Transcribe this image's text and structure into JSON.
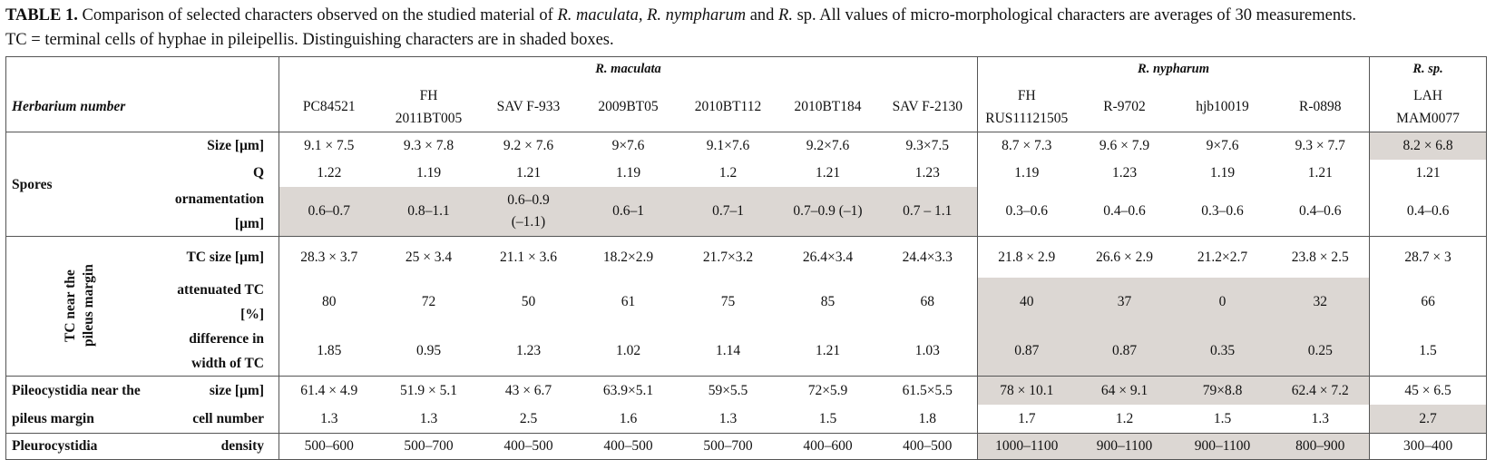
{
  "caption": {
    "label": "TABLE 1.",
    "parts": [
      "Comparison of selected characters observed on the studied material of ",
      "R. maculata, R. nympharum",
      " and ",
      "R.",
      " sp. All values of micro-morphological characters are averages of 30 measurements.",
      "TC = terminal cells of hyphae in pileipellis. Distinguishing characters are in shaded boxes."
    ]
  },
  "table": {
    "groups": [
      "R. maculata",
      "R. nypharum",
      "R. sp."
    ],
    "herbarium_label": "Herbarium number",
    "herbarium_numbers": [
      [
        "PC84521"
      ],
      [
        "FH",
        "2011BT005"
      ],
      [
        "SAV F-933"
      ],
      [
        "2009BT05"
      ],
      [
        "2010BT112"
      ],
      [
        "2010BT184"
      ],
      [
        "SAV F-2130"
      ],
      [
        "FH",
        "RUS11121505"
      ],
      [
        "R-9702"
      ],
      [
        "hjb10019"
      ],
      [
        "R-0898"
      ],
      [
        "LAH",
        "MAM0077"
      ]
    ],
    "shade_color": "#dcd7d3",
    "sections": [
      {
        "label": "Spores",
        "label_orientation": "horizontal",
        "rows": [
          {
            "label": "Size [µm]",
            "values": [
              "9.1 × 7.5",
              "9.3 × 7.8",
              "9.2 × 7.6",
              "9×7.6",
              "9.1×7.6",
              "9.2×7.6",
              "9.3×7.5",
              "8.7 × 7.3",
              "9.6 × 7.9",
              "9×7.6",
              "9.3 × 7.7",
              "8.2 × 6.8"
            ],
            "shaded": [
              false,
              false,
              false,
              false,
              false,
              false,
              false,
              false,
              false,
              false,
              false,
              true
            ]
          },
          {
            "label": "Q",
            "values": [
              "1.22",
              "1.19",
              "1.21",
              "1.19",
              "1.2",
              "1.21",
              "1.23",
              "1.19",
              "1.23",
              "1.19",
              "1.21",
              "1.21"
            ],
            "shaded": [
              false,
              false,
              false,
              false,
              false,
              false,
              false,
              false,
              false,
              false,
              false,
              false
            ]
          },
          {
            "label": "ornamentation [µm]",
            "values": [
              "0.6–0.7",
              "0.8–1.1",
              [
                "0.6–0.9",
                "(–1.1)"
              ],
              "0.6–1",
              "0.7–1",
              "0.7–0.9 (–1)",
              "0.7 – 1.1",
              "0.3–0.6",
              "0.4–0.6",
              "0.3–0.6",
              "0.4–0.6",
              "0.4–0.6"
            ],
            "shaded": [
              true,
              true,
              true,
              true,
              true,
              true,
              true,
              false,
              false,
              false,
              false,
              false
            ]
          }
        ]
      },
      {
        "label": "TC near the pileus margin",
        "label_orientation": "vertical",
        "rows": [
          {
            "label": "TC size [µm]",
            "values": [
              "28.3 × 3.7",
              "25 × 3.4",
              "21.1 × 3.6",
              "18.2×2.9",
              "21.7×3.2",
              "26.4×3.4",
              "24.4×3.3",
              "21.8 × 2.9",
              "26.6 × 2.9",
              "21.2×2.7",
              "23.8 × 2.5",
              "28.7 × 3"
            ],
            "shaded": [
              false,
              false,
              false,
              false,
              false,
              false,
              false,
              false,
              false,
              false,
              false,
              false
            ]
          },
          {
            "label": "attenuated TC [%]",
            "values": [
              "80",
              "72",
              "50",
              "61",
              "75",
              "85",
              "68",
              "40",
              "37",
              "0",
              "32",
              "66"
            ],
            "shaded": [
              false,
              false,
              false,
              false,
              false,
              false,
              false,
              true,
              true,
              true,
              true,
              false
            ]
          },
          {
            "label": "difference in width of TC",
            "values": [
              "1.85",
              "0.95",
              "1.23",
              "1.02",
              "1.14",
              "1.21",
              "1.03",
              "0.87",
              "0.87",
              "0.35",
              "0.25",
              "1.5"
            ],
            "shaded": [
              false,
              false,
              false,
              false,
              false,
              false,
              false,
              true,
              true,
              true,
              true,
              false
            ]
          }
        ]
      },
      {
        "label": [
          "Pileocystidia near the",
          "pileus margin"
        ],
        "label_orientation": "horizontal",
        "rows": [
          {
            "label": "size [µm]",
            "values": [
              "61.4 × 4.9",
              "51.9 × 5.1",
              "43 × 6.7",
              "63.9×5.1",
              "59×5.5",
              "72×5.9",
              "61.5×5.5",
              "78 × 10.1",
              "64 × 9.1",
              "79×8.8",
              "62.4 × 7.2",
              "45 × 6.5"
            ],
            "shaded": [
              false,
              false,
              false,
              false,
              false,
              false,
              false,
              true,
              true,
              true,
              true,
              false
            ]
          },
          {
            "label": "cell number",
            "values": [
              "1.3",
              "1.3",
              "2.5",
              "1.6",
              "1.3",
              "1.5",
              "1.8",
              "1.7",
              "1.2",
              "1.5",
              "1.3",
              "2.7"
            ],
            "shaded": [
              false,
              false,
              false,
              false,
              false,
              false,
              false,
              false,
              false,
              false,
              false,
              true
            ]
          }
        ]
      },
      {
        "label": "Pleurocystidia",
        "label_orientation": "horizontal",
        "rows": [
          {
            "label": "density",
            "values": [
              "500–600",
              "500–700",
              "400–500",
              "400–500",
              "500–700",
              "400–600",
              "400–500",
              "1000–1100",
              "900–1100",
              "900–1100",
              "800–900",
              "300–400"
            ],
            "shaded": [
              false,
              false,
              false,
              false,
              false,
              false,
              false,
              true,
              true,
              true,
              true,
              false
            ]
          }
        ]
      }
    ]
  }
}
